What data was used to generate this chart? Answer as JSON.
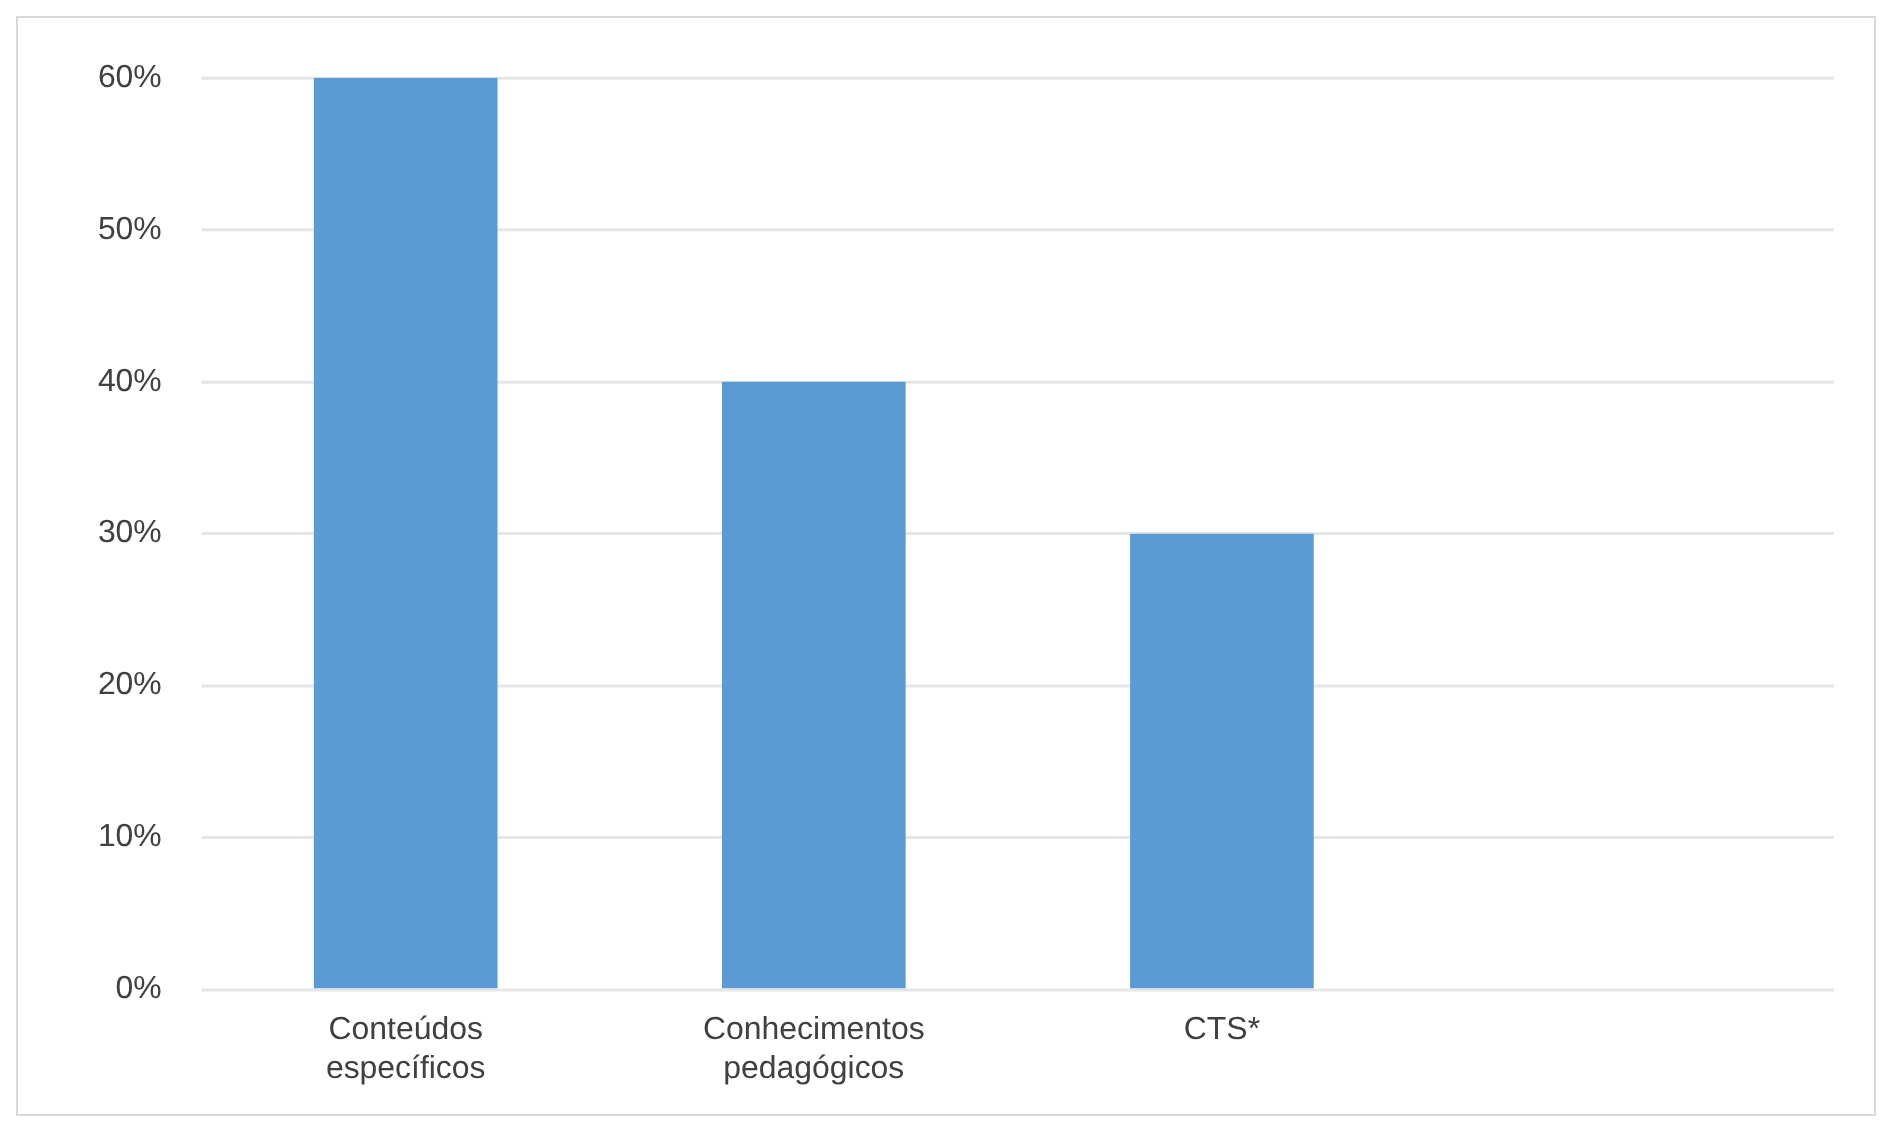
{
  "chart_data": {
    "type": "bar",
    "categories": [
      "Conteúdos específicos",
      "Conhecimentos pedagógicos",
      "CTS*",
      null
    ],
    "values": [
      60,
      40,
      30,
      null
    ],
    "color": "#5b9bd5",
    "ylim": [
      0,
      60
    ],
    "yticks": [
      {
        "value": 0,
        "label": "0%"
      },
      {
        "value": 10,
        "label": "10%"
      },
      {
        "value": 20,
        "label": "20%"
      },
      {
        "value": 30,
        "label": "30%"
      },
      {
        "value": 40,
        "label": "40%"
      },
      {
        "value": 50,
        "label": "50%"
      },
      {
        "value": 60,
        "label": "60%"
      }
    ],
    "grid": "y"
  }
}
